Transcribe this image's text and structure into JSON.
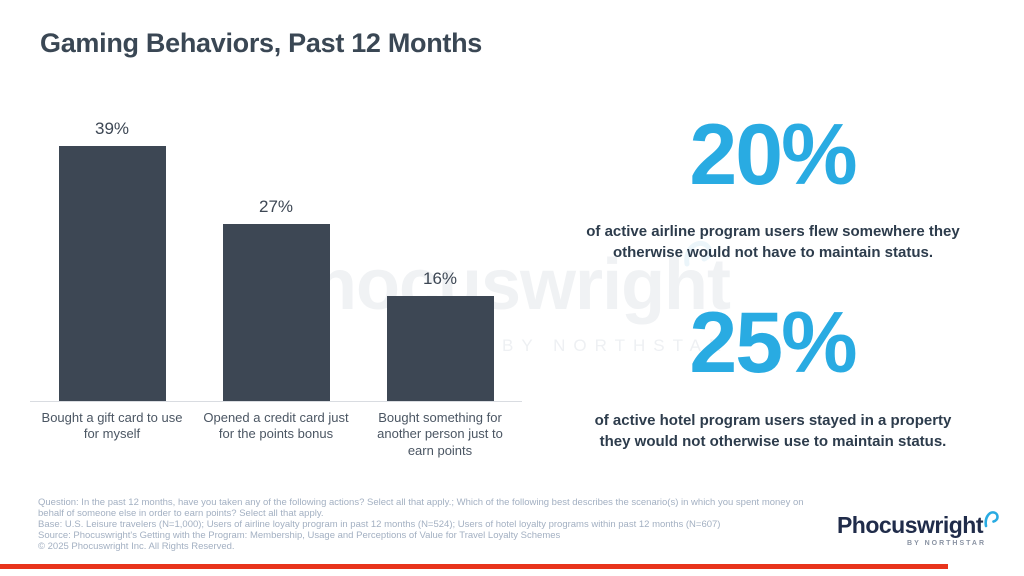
{
  "slide": {
    "title": "Gaming Behaviors, Past 12 Months",
    "accent_blue": "#29abe2",
    "bar_color": "#3d4754",
    "title_color": "#3a4754",
    "footnote_color": "#a3b0c2",
    "accent_red": "#e8341c"
  },
  "chart_data": {
    "type": "bar",
    "categories": [
      "Bought a gift card to use for myself",
      "Opened a credit card just for the points bonus",
      "Bought something for another person just to earn points"
    ],
    "values": [
      39,
      27,
      16
    ],
    "value_labels": [
      "39%",
      "27%",
      "16%"
    ],
    "title": "Gaming Behaviors, Past 12 Months",
    "xlabel": "",
    "ylabel": "",
    "ylim": [
      0,
      40
    ],
    "grid": false,
    "legend": false,
    "bar_color": "#3d4754"
  },
  "stats": [
    {
      "value": "20%",
      "text": "of active airline program users flew somewhere they otherwise would not have to maintain status."
    },
    {
      "value": "25%",
      "text": "of active hotel program users stayed in a property they would not otherwise use to maintain status."
    }
  ],
  "watermark": {
    "text": "Phocuswright",
    "subtext": "BY NORTHSTAR"
  },
  "footnote": {
    "lines": [
      "Question: In the past 12 months, have you taken any of the following actions? Select all that apply.; Which of the following best describes the scenario(s) in which you spent money on",
      "behalf of someone else in order to earn points? Select all that apply.",
      "Base: U.S. Leisure travelers (N=1,000); Users of airline loyalty program in past 12 months (N=524); Users of hotel loyalty programs within past 12 months (N=607)",
      "Source: Phocuswright's Getting with the Program: Membership, Usage and Perceptions of Value for Travel Loyalty Schemes",
      "© 2025 Phocuswright Inc. All Rights Reserved."
    ]
  },
  "logo": {
    "wordmark": "Phocuswright",
    "subtext": "BY NORTHSTAR"
  }
}
